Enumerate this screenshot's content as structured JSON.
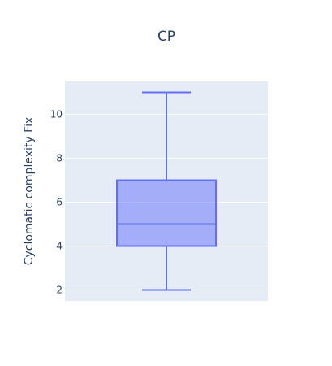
{
  "chart_data": {
    "type": "box",
    "title": "CP",
    "xlabel": "",
    "ylabel": "Cyclomatic complexity Fix",
    "ylim": [
      1.5,
      11.5
    ],
    "yticks": [
      2,
      4,
      6,
      8,
      10
    ],
    "grid": true,
    "series": [
      {
        "min": 2,
        "q1": 4,
        "median": 5,
        "q3": 7,
        "max": 11
      }
    ],
    "colors": {
      "box_line": "#636efa",
      "box_fill": "rgba(99,110,250,0.5)",
      "plot_bg": "#e5ecf6",
      "grid": "#ffffff",
      "text": "#2a3f5f"
    }
  }
}
